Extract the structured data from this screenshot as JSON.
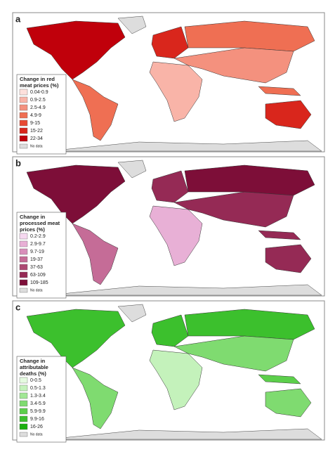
{
  "panels": [
    {
      "label": "a",
      "legend": {
        "title": [
          "Change in red",
          "meat prices (%)"
        ],
        "items": [
          {
            "label": "0.04-0.9",
            "color": "#fde0dc"
          },
          {
            "label": "0.9-2.5",
            "color": "#f9b4a8"
          },
          {
            "label": "2.5-4.9",
            "color": "#f4917e"
          },
          {
            "label": "4.9-9",
            "color": "#ef6f53"
          },
          {
            "label": "9-15",
            "color": "#e84a33"
          },
          {
            "label": "15-22",
            "color": "#d9261c"
          },
          {
            "label": "22-34",
            "color": "#c0000b"
          }
        ],
        "no_data": "No data"
      }
    },
    {
      "label": "b",
      "legend": {
        "title": [
          "Change in",
          "processed meat",
          "prices (%)"
        ],
        "items": [
          {
            "label": "0.2-2.9",
            "color": "#f6d8f0"
          },
          {
            "label": "2.9-9.7",
            "color": "#e8b0d6"
          },
          {
            "label": "9.7-19",
            "color": "#d88fba"
          },
          {
            "label": "19-37",
            "color": "#c56c97"
          },
          {
            "label": "37-63",
            "color": "#ad4873"
          },
          {
            "label": "63-109",
            "color": "#952a55"
          },
          {
            "label": "109-185",
            "color": "#7d0e38"
          }
        ],
        "no_data": "No data"
      }
    },
    {
      "label": "c",
      "legend": {
        "title": [
          "Change in",
          "attributable",
          "deaths (%)"
        ],
        "items": [
          {
            "label": "0-0.5",
            "color": "#e5fbe0"
          },
          {
            "label": "0.5-1.3",
            "color": "#c4f2bb"
          },
          {
            "label": "1.3-3.4",
            "color": "#a1e795"
          },
          {
            "label": "3.4-5.9",
            "color": "#7fdb70"
          },
          {
            "label": "5.9-9.9",
            "color": "#5ccf4b"
          },
          {
            "label": "9.9-16",
            "color": "#3cc02d"
          },
          {
            "label": "16-26",
            "color": "#1bb00f"
          }
        ],
        "no_data": "No data"
      }
    }
  ]
}
